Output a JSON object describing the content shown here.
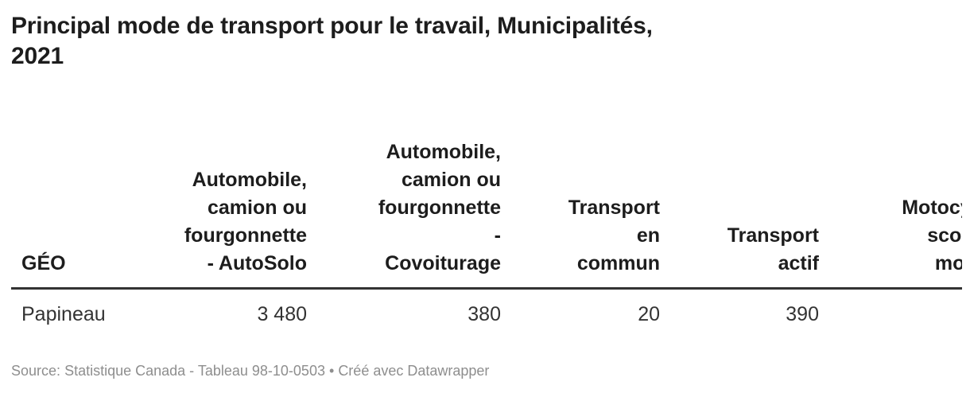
{
  "title": "Principal mode de transport pour le travail, Municipalités,\n2021",
  "table": {
    "columns": [
      {
        "label": "GÉO"
      },
      {
        "label": "Automobile,\ncamion ou\nfourgonnette\n- AutoSolo"
      },
      {
        "label": "Automobile,\ncamion ou\nfourgonnette\n-\nCovoiturage"
      },
      {
        "label": "Transport\nen\ncommun"
      },
      {
        "label": "Transport\nactif"
      },
      {
        "label": "Motocyclette,\nscooter ou\nmobylette"
      }
    ],
    "rows": [
      [
        "Papineau",
        "3 480",
        "380",
        "20",
        "390",
        ""
      ]
    ]
  },
  "footer": {
    "source_label": "Source:",
    "source_text": "Statistique Canada - Tableau 98-10-0503",
    "separator": "•",
    "attribution": "Créé avec Datawrapper"
  },
  "colors": {
    "title_text": "#1d1d1d",
    "body_text": "#333333",
    "header_border": "#333333",
    "footer_text": "#8e8e8e",
    "background": "#ffffff"
  },
  "chart_data": {
    "type": "table",
    "title": "Principal mode de transport pour le travail, Municipalités, 2021",
    "columns": [
      "GÉO",
      "Automobile, camion ou fourgonnette - AutoSolo",
      "Automobile, camion ou fourgonnette - Covoiturage",
      "Transport en commun",
      "Transport actif",
      "Motocyclette, scooter ou mobylette"
    ],
    "rows": [
      {
        "geo": "Papineau",
        "values": [
          3480,
          380,
          20,
          390,
          null
        ]
      }
    ],
    "notes": "Last column is horizontally clipped at the right edge of the view; its value is not visible.",
    "source": "Statistique Canada - Tableau 98-10-0503",
    "tool": "Datawrapper"
  }
}
